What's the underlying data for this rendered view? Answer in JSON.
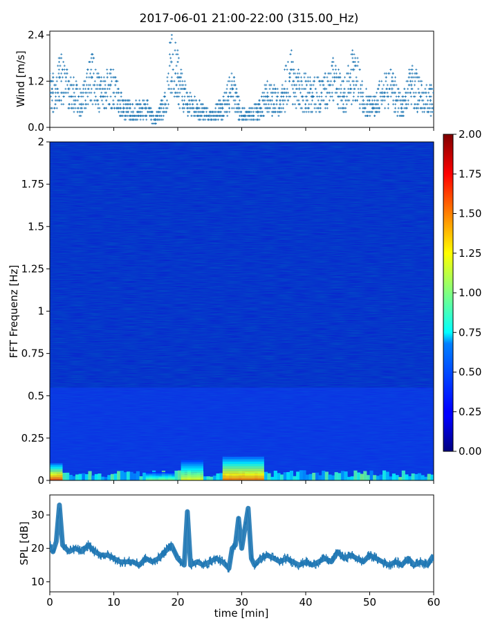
{
  "figure": {
    "title": "2017-06-01 21:00-22:00 (315.00_Hz)"
  },
  "chart_data": [
    {
      "type": "scatter",
      "panel": "wind",
      "ylabel": "Wind [m/s]",
      "xlabel": "",
      "xlim": [
        0,
        60
      ],
      "ylim": [
        0,
        2.5
      ],
      "yticks": [
        "0.0",
        "1.2",
        "2.4"
      ],
      "ytick_values": [
        0.0,
        1.2,
        2.4
      ],
      "color": "#1f77b4",
      "marker": "+",
      "series": [
        {
          "x": [
            0.5,
            1.5,
            3,
            5,
            6.5,
            8,
            9.5,
            11.5,
            13,
            15,
            16.5,
            18,
            19,
            20,
            21.5,
            23,
            25,
            27,
            28.5,
            29.5,
            30.5,
            32.5,
            34,
            36,
            37.5,
            39,
            41,
            43,
            44.5,
            46,
            47.5,
            49,
            50.5,
            52,
            53.5,
            55,
            56.5,
            58,
            59.5
          ],
          "y": [
            0.9,
            1.3,
            1.0,
            0.6,
            1.3,
            0.8,
            1.1,
            0.5,
            0.4,
            0.5,
            0.2,
            0.6,
            1.7,
            1.3,
            0.6,
            0.5,
            0.3,
            0.5,
            1.0,
            0.5,
            0.3,
            0.4,
            0.8,
            0.6,
            1.4,
            1.0,
            0.8,
            1.0,
            1.2,
            0.8,
            1.5,
            0.7,
            0.5,
            0.9,
            1.0,
            0.5,
            1.1,
            0.8,
            0.7
          ]
        }
      ]
    },
    {
      "type": "heatmap",
      "panel": "spectrogram",
      "ylabel": "FFT Frequenz [Hz]",
      "xlabel": "",
      "xlim": [
        0,
        60
      ],
      "ylim": [
        0,
        2
      ],
      "yticks": [
        "0",
        "0.25",
        "0.5",
        "0.75",
        "1",
        "1.25",
        "1.5",
        "1.75",
        "2"
      ],
      "ytick_values": [
        0,
        0.25,
        0.5,
        0.75,
        1,
        1.25,
        1.5,
        1.75,
        2
      ],
      "colormap": "jet",
      "colorbar": {
        "range": [
          0,
          2
        ],
        "ticks": [
          "0.00",
          "0.25",
          "0.50",
          "0.75",
          "1.00",
          "1.25",
          "1.50",
          "1.75",
          "2.00"
        ],
        "tick_values": [
          0,
          0.25,
          0.5,
          0.75,
          1,
          1.25,
          1.5,
          1.75,
          2
        ]
      },
      "high_energy_bands": [
        {
          "x0": 0,
          "x1": 2,
          "y0": 0,
          "y1": 0.1,
          "value": 1.6
        },
        {
          "x0": 20.5,
          "x1": 24,
          "y0": 0,
          "y1": 0.12,
          "value": 1.2
        },
        {
          "x0": 27,
          "x1": 33.5,
          "y0": 0,
          "y1": 0.14,
          "value": 1.5
        },
        {
          "x0": 15,
          "x1": 19.5,
          "y0": 0,
          "y1": 0.05,
          "value": 1.0
        }
      ]
    },
    {
      "type": "line",
      "panel": "spl",
      "ylabel": "SPL [dB]",
      "xlabel": "time [min]",
      "xlim": [
        0,
        60
      ],
      "ylim": [
        7,
        36
      ],
      "yticks": [
        "10",
        "20",
        "30"
      ],
      "ytick_values": [
        10,
        20,
        30
      ],
      "xticks": [
        "0",
        "10",
        "20",
        "30",
        "40",
        "50",
        "60"
      ],
      "xtick_values": [
        0,
        10,
        20,
        30,
        40,
        50,
        60
      ],
      "color": "#1f77b4",
      "series": [
        {
          "x": [
            0,
            0.5,
            1,
            1.5,
            2,
            3,
            4,
            5,
            6,
            7,
            8,
            9,
            10,
            11,
            12,
            13,
            14,
            15,
            16,
            17,
            18,
            19,
            20,
            21,
            21.5,
            22,
            23,
            24,
            25,
            26,
            27,
            28,
            28.5,
            29,
            29.5,
            30,
            31,
            31.5,
            32,
            33,
            34,
            35,
            36,
            37,
            38,
            39,
            40,
            41,
            42,
            43,
            44,
            45,
            46,
            47,
            48,
            49,
            50,
            51,
            52,
            53,
            54,
            55,
            56,
            57,
            58,
            59,
            60
          ],
          "y": [
            21,
            19,
            22,
            33,
            21,
            19,
            20,
            19,
            21,
            19,
            18,
            18,
            17,
            16,
            16,
            16,
            15,
            17,
            16,
            17,
            19,
            21,
            17,
            15,
            31,
            15,
            16,
            15,
            16,
            17,
            16,
            14,
            20,
            21,
            29,
            20,
            32,
            17,
            15,
            17,
            18,
            17,
            16,
            17,
            16,
            15,
            16,
            15,
            16,
            17,
            16,
            19,
            17,
            18,
            17,
            16,
            18,
            17,
            16,
            15,
            16,
            15,
            17,
            15,
            16,
            15,
            18
          ]
        }
      ]
    }
  ]
}
